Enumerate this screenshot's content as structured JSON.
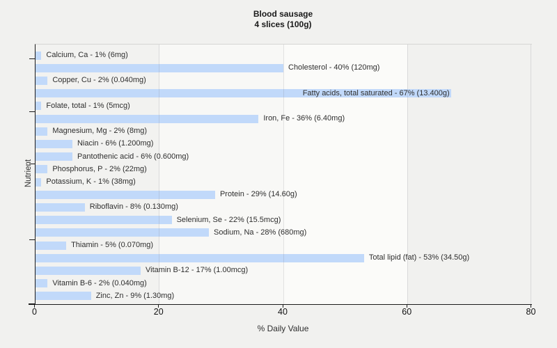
{
  "title": {
    "line1": "Blood sausage",
    "line2": "4 slices (100g)"
  },
  "axes": {
    "x_label": "% Daily Value",
    "y_label": "Nutrient"
  },
  "colors": {
    "bar_fill": "#c1d9fa",
    "page_bg": "#f1f1ef",
    "axis_line": "#1a1a1a",
    "grid_line": "#d8d8d6",
    "band_shades": [
      "#f2f2f0",
      "#f8f8f6",
      "#fbfbf9",
      "#f1f1ef"
    ],
    "label_text": "#2e2e2e"
  },
  "chart_data": {
    "type": "bar",
    "orientation": "horizontal",
    "title": "Blood sausage 4 slices (100g)",
    "xlabel": "% Daily Value",
    "ylabel": "Nutrient",
    "xlim": [
      0,
      80
    ],
    "x_ticks": [
      0,
      20,
      40,
      60,
      80
    ],
    "grid": "vertical-interlaced-bands",
    "categories": [
      "Calcium, Ca",
      "Cholesterol",
      "Copper, Cu",
      "Fatty acids, total saturated",
      "Folate, total",
      "Iron, Fe",
      "Magnesium, Mg",
      "Niacin",
      "Pantothenic acid",
      "Phosphorus, P",
      "Potassium, K",
      "Protein",
      "Riboflavin",
      "Selenium, Se",
      "Sodium, Na",
      "Thiamin",
      "Total lipid (fat)",
      "Vitamin B-12",
      "Vitamin B-6",
      "Zinc, Zn"
    ],
    "values": [
      1,
      40,
      2,
      67,
      1,
      36,
      2,
      6,
      6,
      2,
      1,
      29,
      8,
      22,
      28,
      5,
      53,
      17,
      2,
      9
    ],
    "amounts": [
      "6mg",
      "120mg",
      "0.040mg",
      "13.400g",
      "5mcg",
      "6.40mg",
      "8mg",
      "1.200mg",
      "0.600mg",
      "22mg",
      "38mg",
      "14.60g",
      "0.130mg",
      "15.5mcg",
      "680mg",
      "0.070mg",
      "34.50g",
      "1.00mcg",
      "0.040mg",
      "1.30mg"
    ],
    "bar_labels": [
      "Calcium, Ca - 1% (6mg)",
      "Cholesterol - 40% (120mg)",
      "Copper, Cu - 2% (0.040mg)",
      "Fatty acids, total saturated - 67% (13.400g)",
      "Folate, total - 1% (5mcg)",
      "Iron, Fe - 36% (6.40mg)",
      "Magnesium, Mg - 2% (8mg)",
      "Niacin - 6% (1.200mg)",
      "Pantothenic acid - 6% (0.600mg)",
      "Phosphorus, P - 2% (22mg)",
      "Potassium, K - 1% (38mg)",
      "Protein - 29% (14.60g)",
      "Riboflavin - 8% (0.130mg)",
      "Selenium, Se - 22% (15.5mcg)",
      "Sodium, Na - 28% (680mg)",
      "Thiamin - 5% (0.070mg)",
      "Total lipid (fat) - 53% (34.50g)",
      "Vitamin B-12 - 17% (1.00mcg)",
      "Vitamin B-6 - 2% (0.040mg)",
      "Zinc, Zn - 9% (1.30mg)"
    ]
  }
}
